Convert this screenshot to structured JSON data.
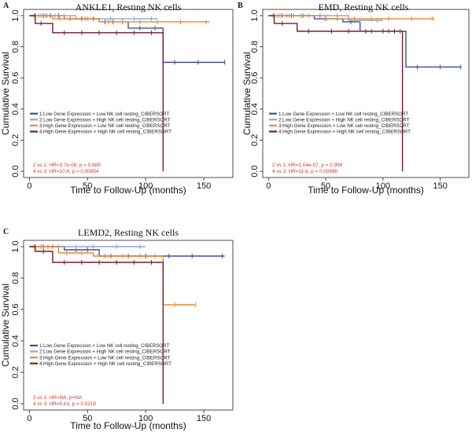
{
  "chart_data": [
    {
      "panel": "A",
      "type": "line",
      "title": "ANKLE1, Resting NK cells",
      "xlabel": "Time to Follow-Up (months)",
      "ylabel": "Cumulative Survival",
      "xlim": [
        -5,
        175
      ],
      "ylim": [
        -0.04,
        1.04
      ],
      "xticks": [
        0,
        50,
        100,
        150
      ],
      "yticks": [
        0.0,
        0.2,
        0.4,
        0.6,
        0.8,
        1.0
      ],
      "legend_labels": [
        "1:Low Gene Expression + Low NK cell resting_CIBERSORT",
        "2:Low Gene Expression + High NK cell resting_CIBERSORT",
        "3:High Gene Expression + Low NK cell resting_CIBERSORT",
        "4:High Gene Expression + High NK cell resting_CIBERSORT"
      ],
      "stats": [
        "2 vs 1: HR=3.7e-08, p = 0.989",
        "4 vs 3: HR=10.6, p = 0.00854"
      ],
      "series": [
        {
          "name": "1:Low Gene Expression + Low NK cell resting_CIBERSORT",
          "color": "#3b4f9b",
          "steps": [
            [
              0,
              1.0
            ],
            [
              30,
              1.0
            ],
            [
              30,
              0.98
            ],
            [
              60,
              0.98
            ],
            [
              60,
              0.96
            ],
            [
              85,
              0.96
            ],
            [
              85,
              0.92
            ],
            [
              115,
              0.92
            ],
            [
              115,
              0.7
            ],
            [
              168,
              0.7
            ]
          ],
          "censors": [
            [
              5,
              1.0
            ],
            [
              12,
              1.0
            ],
            [
              18,
              1.0
            ],
            [
              25,
              1.0
            ],
            [
              35,
              0.98
            ],
            [
              45,
              0.98
            ],
            [
              55,
              0.98
            ],
            [
              65,
              0.96
            ],
            [
              72,
              0.96
            ],
            [
              80,
              0.96
            ],
            [
              95,
              0.92
            ],
            [
              108,
              0.92
            ],
            [
              125,
              0.7
            ],
            [
              145,
              0.7
            ],
            [
              168,
              0.7
            ]
          ]
        },
        {
          "name": "2:Low Gene Expression + High NK cell resting_CIBERSORT",
          "color": "#8fa6cf",
          "steps": [
            [
              0,
              1.0
            ],
            [
              40,
              1.0
            ],
            [
              40,
              0.98
            ],
            [
              110,
              0.98
            ]
          ],
          "censors": [
            [
              8,
              1.0
            ],
            [
              15,
              1.0
            ],
            [
              22,
              1.0
            ],
            [
              30,
              1.0
            ],
            [
              50,
              0.98
            ],
            [
              70,
              0.98
            ],
            [
              90,
              0.98
            ],
            [
              105,
              0.98
            ]
          ]
        },
        {
          "name": "3:High Gene Expression + Low NK cell resting_CIBERSORT",
          "color": "#ec8a2c",
          "steps": [
            [
              0,
              1.0
            ],
            [
              20,
              1.0
            ],
            [
              20,
              0.98
            ],
            [
              60,
              0.98
            ],
            [
              60,
              0.96
            ],
            [
              155,
              0.96
            ]
          ],
          "censors": [
            [
              4,
              1.0
            ],
            [
              10,
              1.0
            ],
            [
              14,
              1.0
            ],
            [
              26,
              0.98
            ],
            [
              35,
              0.98
            ],
            [
              48,
              0.98
            ],
            [
              68,
              0.96
            ],
            [
              80,
              0.96
            ],
            [
              95,
              0.96
            ],
            [
              110,
              0.96
            ],
            [
              130,
              0.96
            ],
            [
              152,
              0.96
            ]
          ]
        },
        {
          "name": "4:High Gene Expression + High NK cell resting_CIBERSORT",
          "color": "#7a1a2e",
          "steps": [
            [
              0,
              1.0
            ],
            [
              5,
              1.0
            ],
            [
              5,
              0.95
            ],
            [
              20,
              0.95
            ],
            [
              20,
              0.89
            ],
            [
              115,
              0.89
            ],
            [
              115,
              0.0
            ]
          ],
          "censors": [
            [
              10,
              0.95
            ],
            [
              30,
              0.89
            ],
            [
              45,
              0.89
            ],
            [
              60,
              0.89
            ],
            [
              75,
              0.89
            ],
            [
              90,
              0.89
            ],
            [
              105,
              0.89
            ]
          ]
        }
      ]
    },
    {
      "panel": "B",
      "type": "line",
      "title": "EMD, Resting NK cells",
      "xlabel": "Time to Follow-Up (months)",
      "ylabel": "Cumulative Survival",
      "xlim": [
        -5,
        175
      ],
      "ylim": [
        -0.04,
        1.04
      ],
      "xticks": [
        0,
        50,
        100,
        150
      ],
      "yticks": [
        0.0,
        0.2,
        0.4,
        0.6,
        0.8,
        1.0
      ],
      "legend_labels": [
        "1:Low Gene Expression + Low NK cell resting_CIBERSORT",
        "2:Low Gene Expression + High NK cell resting_CIBERSORT",
        "3:High Gene Expression + Low NK cell resting_CIBERSORT",
        "4:High Gene Expression + High NK cell resting_CIBERSORT"
      ],
      "stats": [
        "2 vs 1: HR=1.04e-07, p = 0.999",
        "4 vs 3: HR=11.6, p = 0.00996"
      ],
      "series": [
        {
          "name": "1:Low Gene Expression + Low NK cell resting_CIBERSORT",
          "color": "#3b4f9b",
          "steps": [
            [
              0,
              1.0
            ],
            [
              40,
              1.0
            ],
            [
              40,
              0.98
            ],
            [
              65,
              0.98
            ],
            [
              65,
              0.96
            ],
            [
              80,
              0.96
            ],
            [
              80,
              0.9
            ],
            [
              120,
              0.9
            ],
            [
              120,
              0.67
            ],
            [
              168,
              0.67
            ]
          ],
          "censors": [
            [
              5,
              1.0
            ],
            [
              12,
              1.0
            ],
            [
              20,
              1.0
            ],
            [
              30,
              1.0
            ],
            [
              50,
              0.98
            ],
            [
              60,
              0.98
            ],
            [
              72,
              0.96
            ],
            [
              90,
              0.9
            ],
            [
              105,
              0.9
            ],
            [
              115,
              0.9
            ],
            [
              130,
              0.67
            ],
            [
              150,
              0.67
            ],
            [
              168,
              0.67
            ]
          ]
        },
        {
          "name": "2:Low Gene Expression + High NK cell resting_CIBERSORT",
          "color": "#8fa6cf",
          "steps": [
            [
              0,
              1.0
            ],
            [
              70,
              1.0
            ],
            [
              70,
              0.97
            ],
            [
              100,
              0.97
            ]
          ],
          "censors": [
            [
              8,
              1.0
            ],
            [
              18,
              1.0
            ],
            [
              28,
              1.0
            ],
            [
              45,
              1.0
            ],
            [
              60,
              1.0
            ],
            [
              80,
              0.97
            ],
            [
              95,
              0.97
            ]
          ]
        },
        {
          "name": "3:High Gene Expression + Low NK cell resting_CIBERSORT",
          "color": "#ec8a2c",
          "steps": [
            [
              0,
              1.0
            ],
            [
              50,
              1.0
            ],
            [
              50,
              0.98
            ],
            [
              145,
              0.98
            ]
          ],
          "censors": [
            [
              4,
              1.0
            ],
            [
              10,
              1.0
            ],
            [
              16,
              1.0
            ],
            [
              22,
              1.0
            ],
            [
              35,
              1.0
            ],
            [
              45,
              1.0
            ],
            [
              60,
              0.98
            ],
            [
              75,
              0.98
            ],
            [
              90,
              0.98
            ],
            [
              105,
              0.98
            ],
            [
              125,
              0.98
            ],
            [
              143,
              0.98
            ]
          ]
        },
        {
          "name": "4:High Gene Expression + High NK cell resting_CIBERSORT",
          "color": "#7a1a2e",
          "steps": [
            [
              0,
              1.0
            ],
            [
              5,
              1.0
            ],
            [
              5,
              0.95
            ],
            [
              25,
              0.95
            ],
            [
              25,
              0.9
            ],
            [
              117,
              0.9
            ],
            [
              117,
              0.0
            ]
          ],
          "censors": [
            [
              12,
              0.95
            ],
            [
              35,
              0.9
            ],
            [
              55,
              0.9
            ],
            [
              70,
              0.9
            ],
            [
              85,
              0.9
            ],
            [
              100,
              0.9
            ],
            [
              110,
              0.9
            ]
          ]
        }
      ]
    },
    {
      "panel": "C",
      "type": "line",
      "title": "LEMD2, Resting NK cells",
      "xlabel": "Time to Follow-Up (months)",
      "ylabel": "Cumulative Survival",
      "xlim": [
        -5,
        175
      ],
      "ylim": [
        -0.04,
        1.04
      ],
      "xticks": [
        0,
        50,
        100,
        150
      ],
      "yticks": [
        0.0,
        0.2,
        0.4,
        0.6,
        0.8,
        1.0
      ],
      "legend_labels": [
        "1:Low Gene Expression + Low NK cell resting_CIBERSORT",
        "2:Low Gene Expression + High NK cell resting_CIBERSORT",
        "3:High Gene Expression + Low NK cell resting_CIBERSORT",
        "4:High Gene Expression + High NK cell resting_CIBERSORT"
      ],
      "stats": [
        "2 vs 1: HR=NA, p=NA",
        "4 vs 3: HR=5.63, p = 0.0219"
      ],
      "series": [
        {
          "name": "1:Low Gene Expression + Low NK cell resting_CIBERSORT",
          "color": "#3b4f9b",
          "steps": [
            [
              0,
              1.0
            ],
            [
              30,
              1.0
            ],
            [
              30,
              0.98
            ],
            [
              60,
              0.98
            ],
            [
              60,
              0.94
            ],
            [
              168,
              0.94
            ]
          ],
          "censors": [
            [
              5,
              1.0
            ],
            [
              12,
              1.0
            ],
            [
              20,
              1.0
            ],
            [
              40,
              0.98
            ],
            [
              50,
              0.98
            ],
            [
              70,
              0.94
            ],
            [
              85,
              0.94
            ],
            [
              100,
              0.94
            ],
            [
              120,
              0.94
            ],
            [
              140,
              0.94
            ],
            [
              166,
              0.94
            ]
          ]
        },
        {
          "name": "2:Low Gene Expression + High NK cell resting_CIBERSORT",
          "color": "#8fa6cf",
          "steps": [
            [
              0,
              1.0
            ],
            [
              100,
              1.0
            ]
          ],
          "censors": [
            [
              10,
              1.0
            ],
            [
              25,
              1.0
            ],
            [
              40,
              1.0
            ],
            [
              55,
              1.0
            ],
            [
              75,
              1.0
            ],
            [
              95,
              1.0
            ]
          ]
        },
        {
          "name": "3:High Gene Expression + Low NK cell resting_CIBERSORT",
          "color": "#ec8a2c",
          "steps": [
            [
              0,
              1.0
            ],
            [
              25,
              1.0
            ],
            [
              25,
              0.96
            ],
            [
              55,
              0.96
            ],
            [
              55,
              0.94
            ],
            [
              115,
              0.94
            ],
            [
              115,
              0.63
            ],
            [
              143,
              0.63
            ]
          ],
          "censors": [
            [
              4,
              1.0
            ],
            [
              10,
              1.0
            ],
            [
              16,
              1.0
            ],
            [
              32,
              0.96
            ],
            [
              45,
              0.96
            ],
            [
              65,
              0.94
            ],
            [
              80,
              0.94
            ],
            [
              95,
              0.94
            ],
            [
              108,
              0.94
            ],
            [
              125,
              0.63
            ],
            [
              143,
              0.63
            ]
          ]
        },
        {
          "name": "4:High Gene Expression + High NK cell resting_CIBERSORT",
          "color": "#7a1a2e",
          "steps": [
            [
              0,
              1.0
            ],
            [
              5,
              1.0
            ],
            [
              5,
              0.97
            ],
            [
              20,
              0.97
            ],
            [
              20,
              0.9
            ],
            [
              115,
              0.9
            ],
            [
              115,
              0.0
            ]
          ],
          "censors": [
            [
              12,
              0.97
            ],
            [
              30,
              0.9
            ],
            [
              45,
              0.9
            ],
            [
              60,
              0.9
            ],
            [
              75,
              0.9
            ],
            [
              90,
              0.9
            ],
            [
              105,
              0.9
            ]
          ]
        }
      ]
    }
  ]
}
